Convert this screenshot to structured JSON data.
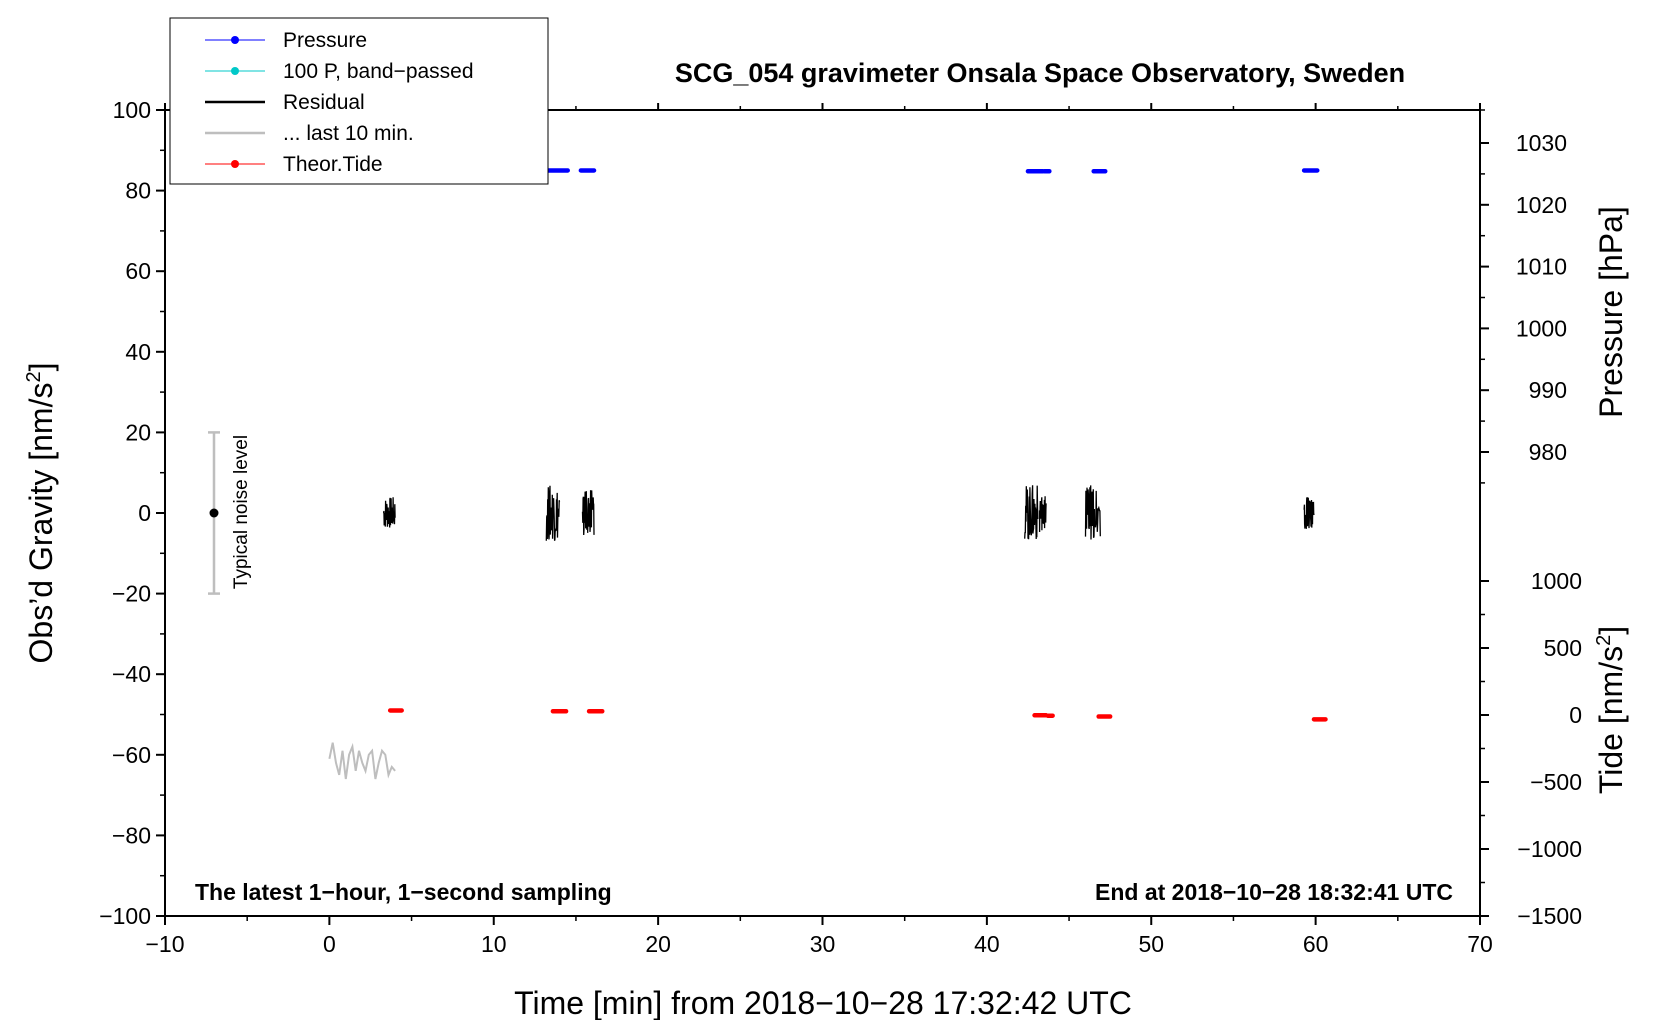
{
  "chart_data": {
    "type": "line",
    "title": "SCG_054 gravimeter Onsala Space Observatory, Sweden",
    "xlabel": "Time [min] from 2018−10−28 17:32:42 UTC",
    "ylabel": "Obs’d Gravity [nm/s",
    "ylabel_sup": "2",
    "ylabel_end": "]",
    "y2_pressure_label": "Pressure [hPa]",
    "y2_tide_label": "Tide [nm/s",
    "y2_tide_sup": "2",
    "y2_tide_end": "]",
    "xlim": [
      -10,
      70
    ],
    "ylim": [
      -100,
      100
    ],
    "x_ticks": [
      "−10",
      "0",
      "10",
      "20",
      "30",
      "40",
      "50",
      "60",
      "70"
    ],
    "y_ticks": [
      "100",
      "80",
      "60",
      "40",
      "20",
      "0",
      "−20",
      "−40",
      "−60",
      "−80",
      "−100"
    ],
    "pressure_ticks": [
      "1030",
      "1020",
      "1010",
      "1000",
      "990",
      "980"
    ],
    "tide_ticks": [
      "1000",
      "500",
      "0",
      "−500",
      "−1000",
      "−1500"
    ],
    "left_note": "The latest 1−hour, 1−second sampling",
    "right_note": "End at 2018−10−28 18:32:41 UTC",
    "noise_label": "Typical noise level",
    "noise_range": [
      -20,
      20
    ],
    "legend": [
      {
        "label": "Pressure",
        "color": "#0000ff",
        "marker": true
      },
      {
        "label": "100 P, band−passed",
        "color": "#00c8c8",
        "marker": true
      },
      {
        "label": "Residual",
        "color": "#000000",
        "marker": false
      },
      {
        "label": "... last 10 min.",
        "color": "#bebebe",
        "marker": false
      },
      {
        "label": "Theor.Tide",
        "color": "#ff0000",
        "marker": true
      }
    ],
    "series": [
      {
        "name": "Pressure",
        "color": "#0000ff",
        "unit_axis": "gravity",
        "segments": [
          [
            13.3,
            14.5,
            85
          ],
          [
            15.3,
            16.1,
            85
          ],
          [
            42.5,
            43.4,
            84.8
          ],
          [
            43.5,
            43.8,
            84.8
          ],
          [
            46.5,
            47.2,
            84.8
          ],
          [
            59.3,
            60.1,
            85
          ]
        ]
      },
      {
        "name": "Theor.Tide",
        "color": "#ff0000",
        "unit_axis": "gravity",
        "segments": [
          [
            3.7,
            4.4,
            -49
          ],
          [
            13.6,
            14.4,
            -49.2
          ],
          [
            15.8,
            16.6,
            -49.2
          ],
          [
            42.9,
            43.6,
            -50.2
          ],
          [
            43.7,
            44.0,
            -50.3
          ],
          [
            46.8,
            47.5,
            -50.5
          ],
          [
            59.9,
            60.6,
            -51.2
          ]
        ]
      },
      {
        "name": "Residual",
        "color": "#000000",
        "unit_axis": "gravity",
        "bursts": [
          [
            3.3,
            4.0,
            4
          ],
          [
            13.2,
            14.0,
            7
          ],
          [
            15.4,
            16.1,
            6
          ],
          [
            42.3,
            43.1,
            7
          ],
          [
            43.2,
            43.6,
            5
          ],
          [
            46.0,
            46.9,
            7
          ],
          [
            59.3,
            59.9,
            4
          ]
        ]
      },
      {
        "name": "... last 10 min.",
        "color": "#bebebe",
        "unit_axis": "gravity",
        "x": [
          0.0,
          0.2,
          0.4,
          0.6,
          0.8,
          1.0,
          1.2,
          1.4,
          1.6,
          1.8,
          2.0,
          2.2,
          2.4,
          2.6,
          2.8,
          3.0,
          3.2,
          3.4,
          3.6,
          3.8,
          4.0
        ],
        "y": [
          -61,
          -57,
          -62,
          -65,
          -59,
          -66,
          -60,
          -58,
          -64,
          -59,
          -62,
          -64,
          -60,
          -59,
          -66,
          -62,
          -59,
          -60,
          -65,
          -63,
          -64
        ]
      }
    ]
  }
}
